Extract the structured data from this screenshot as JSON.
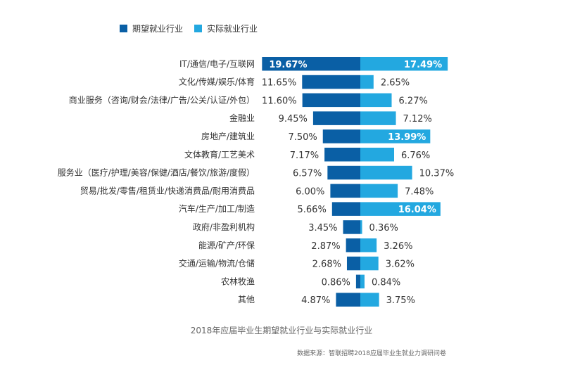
{
  "chart_data": {
    "type": "bar",
    "orientation": "horizontal",
    "layout": "diverging",
    "title": "2018年应届毕业生期望就业行业与实际就业行业",
    "source": "数据来源：智联招聘2018应届毕业生就业力调研问卷",
    "legend_position": "top-left",
    "grid": false,
    "categories": [
      "IT/通信/电子/互联网",
      "文化/传媒/娱乐/体育",
      "商业服务（咨询/财会/法律/广告/公关/认证/外包）",
      "金融业",
      "房地产/建筑业",
      "文体教育/工艺美术",
      "服务业（医疗/护理/美容/保健/酒店/餐饮/旅游/度假）",
      "贸易/批发/零售/租赁业/快递消费品/耐用消费品",
      "汽车/生产/加工/制造",
      "政府/非盈利机构",
      "能源/矿产/环保",
      "交通/运输/物流/仓储",
      "农林牧渔",
      "其他"
    ],
    "series": [
      {
        "name": "期望就业行业",
        "color": "#0a5fa5",
        "values": [
          19.67,
          11.65,
          11.6,
          9.45,
          7.5,
          7.17,
          6.57,
          6.0,
          5.66,
          3.45,
          2.87,
          2.68,
          0.86,
          4.87
        ],
        "labels": [
          "19.67%",
          "11.65%",
          "11.60%",
          "9.45%",
          "7.50%",
          "7.17%",
          "6.57%",
          "6.00%",
          "5.66%",
          "3.45%",
          "2.87%",
          "2.68%",
          "0.86%",
          "4.87%"
        ]
      },
      {
        "name": "实际就业行业",
        "color": "#23a8e0",
        "values": [
          17.49,
          2.65,
          6.27,
          7.12,
          13.99,
          6.76,
          10.37,
          7.48,
          16.04,
          0.36,
          3.26,
          3.62,
          0.84,
          3.75
        ],
        "labels": [
          "17.49%",
          "2.65%",
          "6.27%",
          "7.12%",
          "13.99%",
          "6.76%",
          "10.37%",
          "7.48%",
          "16.04%",
          "0.36%",
          "3.26%",
          "3.62%",
          "0.84%",
          "3.75%"
        ]
      }
    ]
  }
}
